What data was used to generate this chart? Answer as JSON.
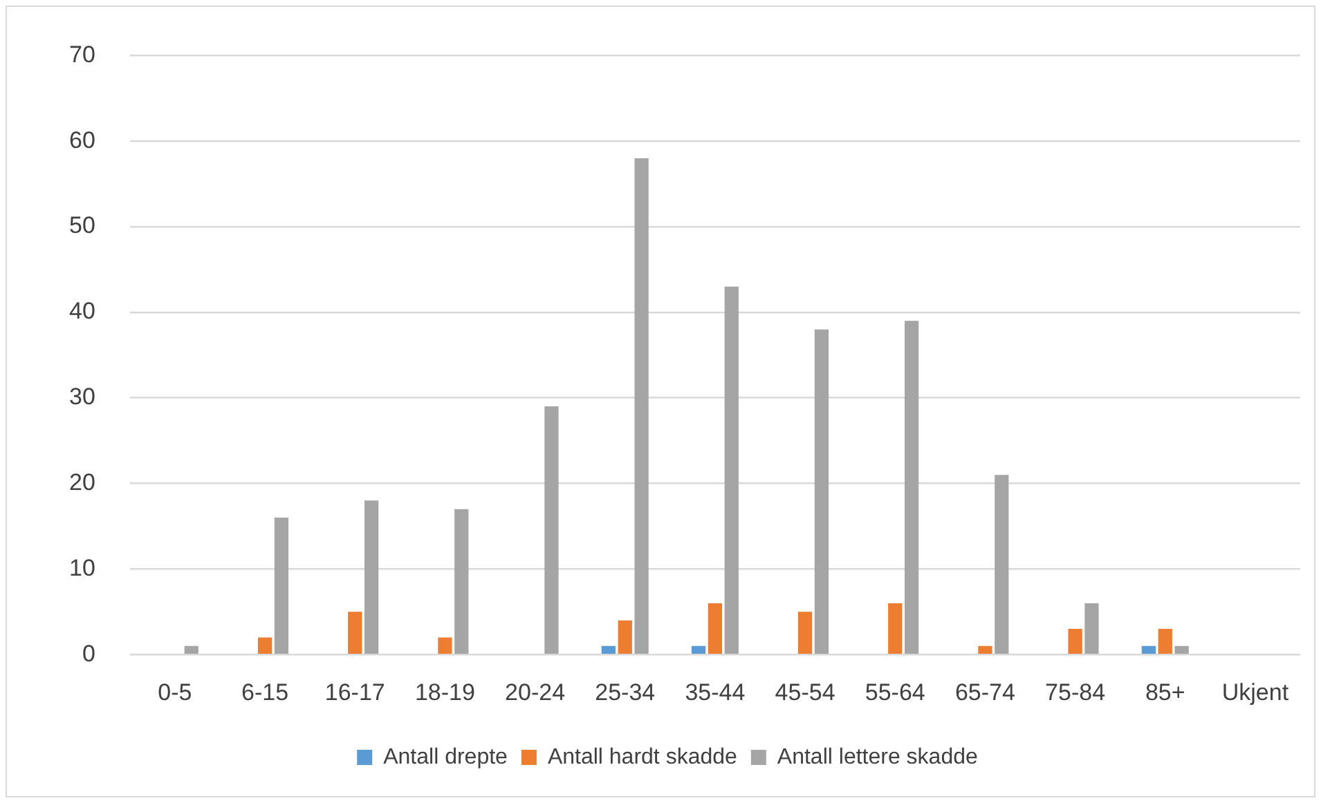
{
  "chart_data": {
    "type": "bar",
    "categories": [
      "0-5",
      "6-15",
      "16-17",
      "18-19",
      "20-24",
      "25-34",
      "35-44",
      "45-54",
      "55-64",
      "65-74",
      "75-84",
      "85+",
      "Ukjent"
    ],
    "series": [
      {
        "name": "Antall drepte",
        "color": "#5b9bd5",
        "values": [
          0,
          0,
          0,
          0,
          0,
          1,
          1,
          0,
          0,
          0,
          0,
          1,
          0
        ]
      },
      {
        "name": "Antall hardt skadde",
        "color": "#ed7d31",
        "values": [
          0,
          2,
          5,
          2,
          0,
          4,
          6,
          5,
          6,
          1,
          3,
          3,
          0
        ]
      },
      {
        "name": "Antall lettere skadde",
        "color": "#a5a5a5",
        "values": [
          1,
          16,
          18,
          17,
          29,
          58,
          43,
          38,
          39,
          21,
          6,
          1,
          0
        ]
      }
    ],
    "ylim": [
      0,
      70
    ],
    "yticks": [
      0,
      10,
      20,
      30,
      40,
      50,
      60,
      70
    ],
    "grid": "y",
    "legend": "bottom"
  }
}
